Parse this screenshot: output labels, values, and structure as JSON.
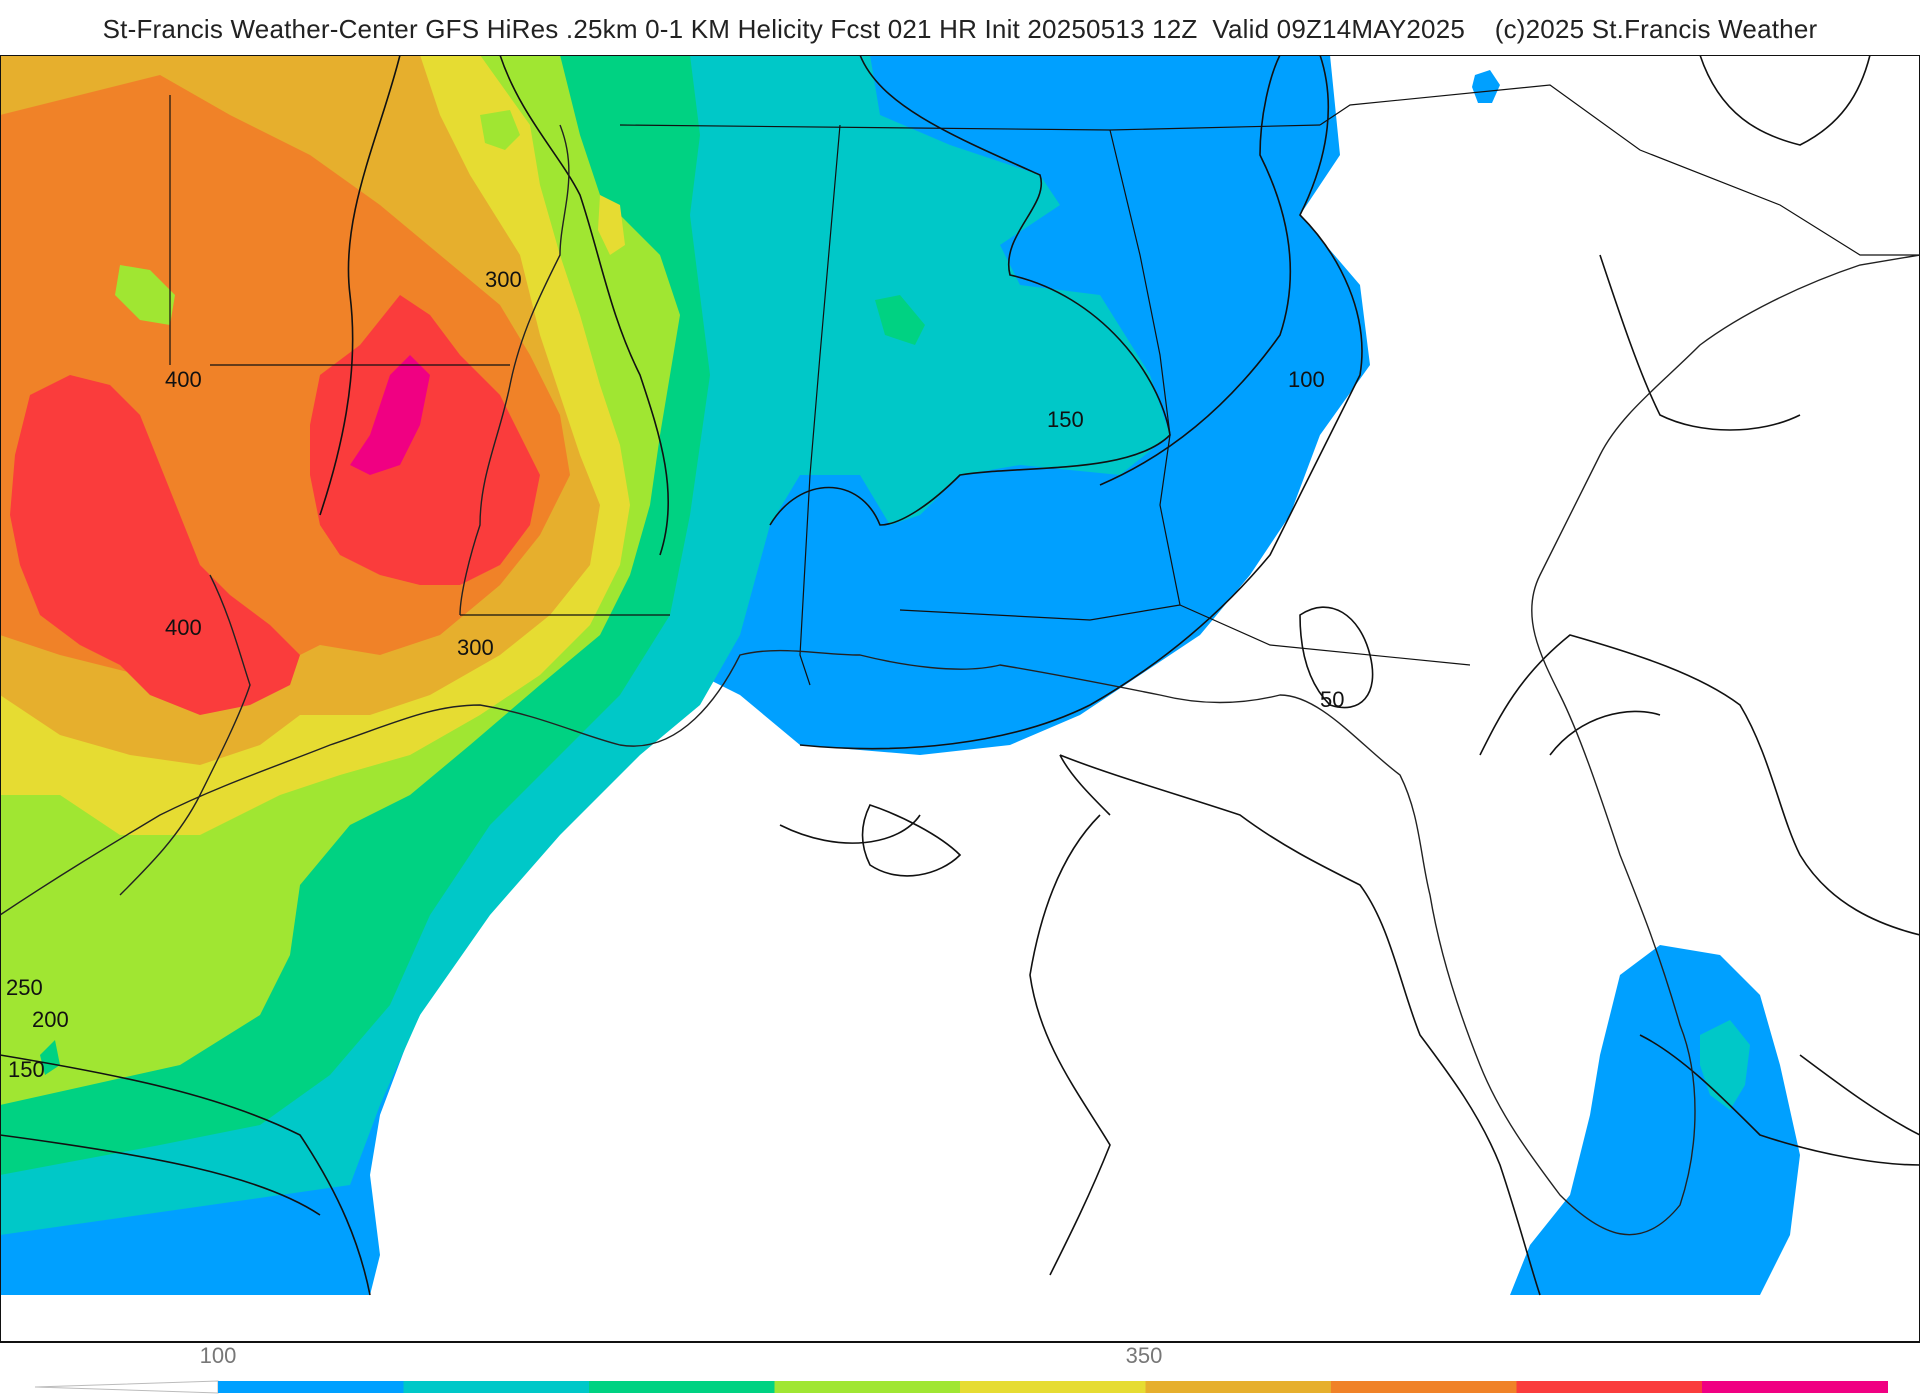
{
  "header": {
    "title": "St-Francis Weather-Center GFS HiRes .25km 0-1 KM Helicity Fcst 021 HR Init 20250513 12Z  Valid 09Z14MAY2025    (c)2025 St.Francis Weather"
  },
  "map": {
    "contour_labels": [
      "300",
      "400",
      "400",
      "300",
      "150",
      "100",
      "50",
      "250",
      "200",
      "150"
    ],
    "fill_colors": {
      "c100": "#00a0ff",
      "c150": "#00c8c8",
      "c200": "#00d282",
      "c250": "#a0e632",
      "c300": "#e6dc32",
      "c350": "#e6af2d",
      "c400": "#f08228",
      "c450": "#fa3c3c",
      "c500": "#f00082"
    }
  },
  "colorbar": {
    "tick_labels": [
      "100",
      "350"
    ],
    "colors": [
      "#00a0ff",
      "#00c8c8",
      "#00d282",
      "#a0e632",
      "#e6dc32",
      "#e6af2d",
      "#f08228",
      "#fa3c3c",
      "#f00082"
    ]
  }
}
